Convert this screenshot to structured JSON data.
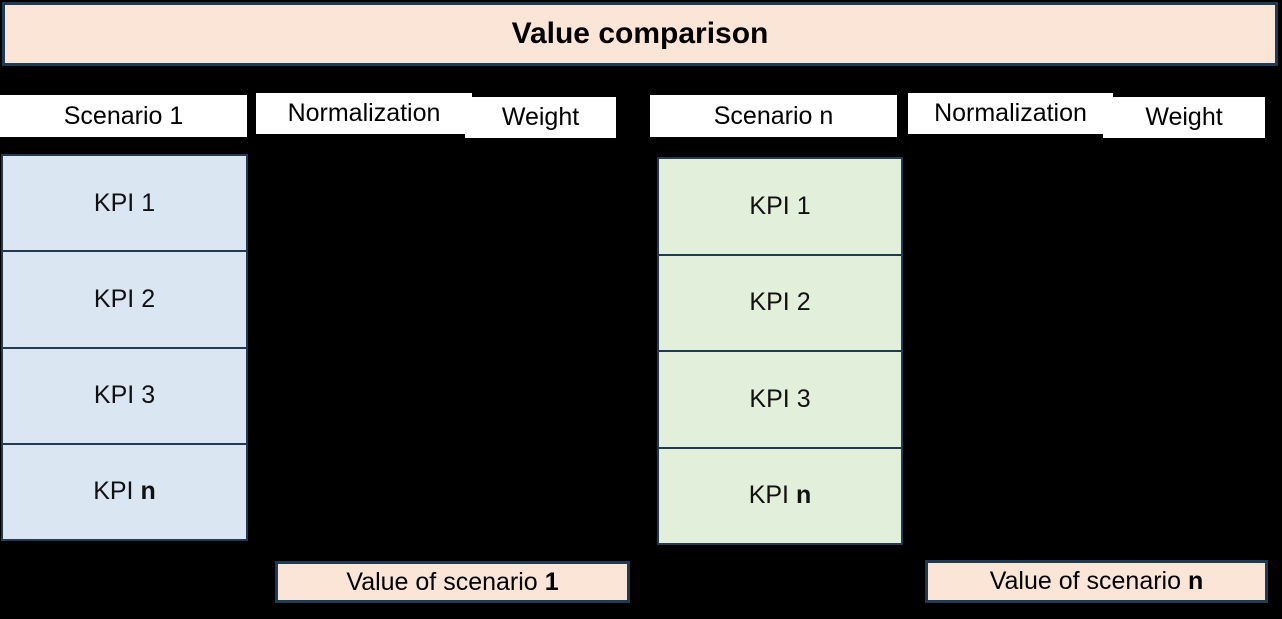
{
  "title": "Value comparison",
  "colors": {
    "background": "#000000",
    "title_fill": "#fbe5d6",
    "value_fill": "#fbe5d6",
    "scenario_1_fill": "#dbe6f3",
    "scenario_n_fill": "#e2efda",
    "header_fill": "#ffffff",
    "border": "#1f3b54",
    "text": "#000000"
  },
  "left_group": {
    "scenario_label": "Scenario 1",
    "normalization_label": "Normalization",
    "weight_label": "Weight",
    "kpis": [
      {
        "prefix": "KPI",
        "suffix": "1",
        "bold_suffix": false
      },
      {
        "prefix": "KPI",
        "suffix": "2",
        "bold_suffix": false
      },
      {
        "prefix": "KPI",
        "suffix": "3",
        "bold_suffix": false
      },
      {
        "prefix": "KPI",
        "suffix": "n",
        "bold_suffix": true
      }
    ],
    "value_prefix": "Value of scenario",
    "value_suffix": "1"
  },
  "right_group": {
    "scenario_label": "Scenario n",
    "normalization_label": "Normalization",
    "weight_label": "Weight",
    "kpis": [
      {
        "prefix": "KPI",
        "suffix": "1",
        "bold_suffix": false
      },
      {
        "prefix": "KPI",
        "suffix": "2",
        "bold_suffix": false
      },
      {
        "prefix": "KPI",
        "suffix": "3",
        "bold_suffix": false
      },
      {
        "prefix": "KPI",
        "suffix": "n",
        "bold_suffix": true
      }
    ],
    "value_prefix": "Value of scenario",
    "value_suffix": "n"
  }
}
